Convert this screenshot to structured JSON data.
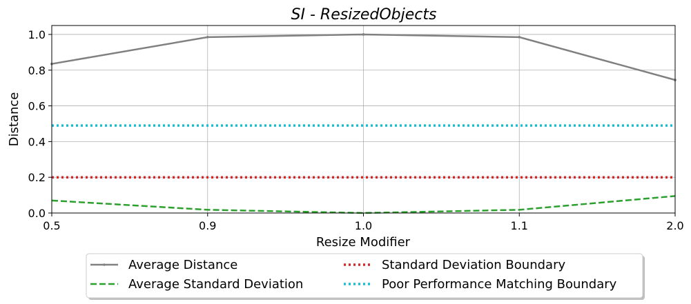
{
  "chart_data": {
    "type": "line",
    "title": "SI - ResizedObjects",
    "xlabel": "Resize Modifier",
    "ylabel": "Distance",
    "categories": [
      "0.5",
      "0.9",
      "1.0",
      "1.1",
      "2.0"
    ],
    "ylim": [
      0,
      1.05
    ],
    "yticks": [
      "0.0",
      "0.2",
      "0.4",
      "0.6",
      "0.8",
      "1.0"
    ],
    "grid": true,
    "legend_position": "bottom-center",
    "series": [
      {
        "name": "Average Distance",
        "values": [
          0.835,
          0.985,
          1.0,
          0.985,
          0.745
        ],
        "color": "#808080",
        "style": "solid-marker"
      },
      {
        "name": "Average Standard Deviation",
        "values": [
          0.07,
          0.018,
          0.0,
          0.018,
          0.095
        ],
        "color": "#2ca02c",
        "style": "dashed"
      },
      {
        "name": "Standard Deviation Boundary",
        "values": [
          0.2,
          0.2,
          0.2,
          0.2,
          0.2
        ],
        "color": "#d62728",
        "style": "dotted"
      },
      {
        "name": "Poor Performance Matching Boundary",
        "values": [
          0.49,
          0.49,
          0.49,
          0.49,
          0.49
        ],
        "color": "#17becf",
        "style": "dotted"
      }
    ]
  }
}
